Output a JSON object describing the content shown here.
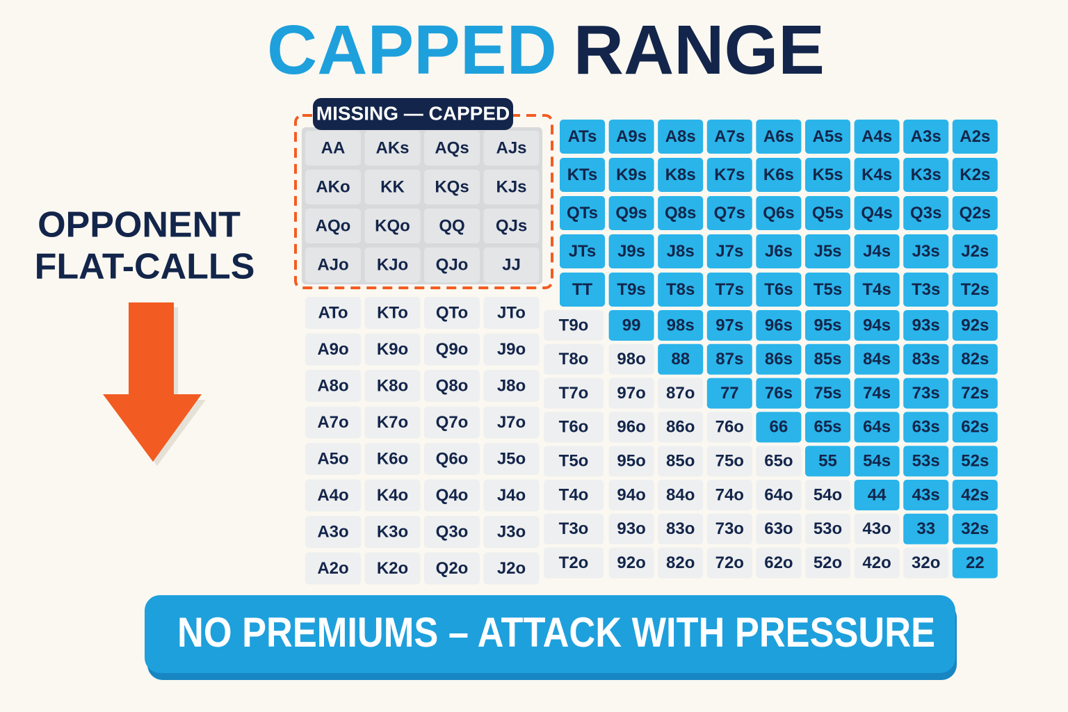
{
  "title": {
    "part1": "CAPPED",
    "part2": "RANGE"
  },
  "side_label": [
    "OPPONENT",
    "FLAT-CALLS"
  ],
  "missing": {
    "label": "MISSING — CAPPED",
    "cells": [
      [
        "AA",
        "AKs",
        "AQs",
        "AJs"
      ],
      [
        "AKo",
        "KK",
        "KQs",
        "KJs"
      ],
      [
        "AQo",
        "KQo",
        "QQ",
        "QJs"
      ],
      [
        "AJo",
        "KJo",
        "QJo",
        "JJ"
      ]
    ]
  },
  "offsuit_cells": [
    [
      "ATo",
      "KTo",
      "QTo",
      "JTo"
    ],
    [
      "A9o",
      "K9o",
      "Q9o",
      "J9o"
    ],
    [
      "A8o",
      "K8o",
      "Q8o",
      "J8o"
    ],
    [
      "A7o",
      "K7o",
      "Q7o",
      "J7o"
    ],
    [
      "A5o",
      "K6o",
      "Q6o",
      "J5o"
    ],
    [
      "A4o",
      "K4o",
      "Q4o",
      "J4o"
    ],
    [
      "A3o",
      "K3o",
      "Q3o",
      "J3o"
    ],
    [
      "A2o",
      "K2o",
      "Q2o",
      "J2o"
    ]
  ],
  "suited_cells": [
    [
      "ATs",
      "A9s",
      "A8s",
      "A7s",
      "A6s",
      "A5s",
      "A4s",
      "A3s",
      "A2s"
    ],
    [
      "KTs",
      "K9s",
      "K8s",
      "K7s",
      "K6s",
      "K5s",
      "K4s",
      "K3s",
      "K2s"
    ],
    [
      "QTs",
      "Q9s",
      "Q8s",
      "Q7s",
      "Q6s",
      "Q5s",
      "Q4s",
      "Q3s",
      "Q2s"
    ],
    [
      "JTs",
      "J9s",
      "J8s",
      "J7s",
      "J6s",
      "J5s",
      "J4s",
      "J3s",
      "J2s"
    ],
    [
      "TT",
      "T9s",
      "T8s",
      "T7s",
      "T6s",
      "T5s",
      "T4s",
      "T3s",
      "T2s"
    ]
  ],
  "lower_cells": [
    [
      "T9o",
      "99",
      "98s",
      "97s",
      "96s",
      "95s",
      "94s",
      "93s",
      "92s"
    ],
    [
      "T8o",
      "98o",
      "88",
      "87s",
      "86s",
      "85s",
      "84s",
      "83s",
      "82s"
    ],
    [
      "T7o",
      "97o",
      "87o",
      "77",
      "76s",
      "75s",
      "74s",
      "73s",
      "72s"
    ],
    [
      "T6o",
      "96o",
      "86o",
      "76o",
      "66",
      "65s",
      "64s",
      "63s",
      "62s"
    ],
    [
      "T5o",
      "95o",
      "85o",
      "75o",
      "65o",
      "55",
      "54s",
      "53s",
      "52s"
    ],
    [
      "T4o",
      "94o",
      "84o",
      "74o",
      "64o",
      "54o",
      "44",
      "43s",
      "42s"
    ],
    [
      "T3o",
      "93o",
      "83o",
      "73o",
      "63o",
      "53o",
      "43o",
      "33",
      "32s"
    ],
    [
      "T2o",
      "92o",
      "82o",
      "72o",
      "62o",
      "52o",
      "42o",
      "32o",
      "22"
    ]
  ],
  "banner": "NO PREMIUMS – ATTACK WITH PRESSURE"
}
